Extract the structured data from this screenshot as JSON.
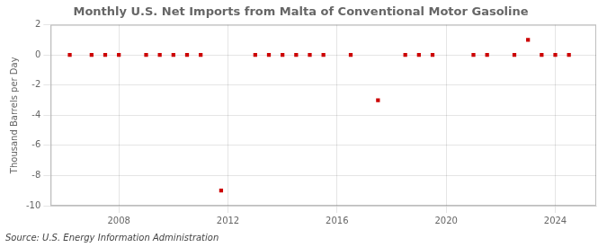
{
  "chart_data": {
    "type": "scatter",
    "title": "Monthly U.S. Net Imports from Malta of Conventional Motor Gasoline",
    "ylabel": "Thousand Barrels per Day",
    "annotations": [
      "Source: U.S. Energy Information Administration"
    ],
    "x": [
      2006.2,
      2007.0,
      2007.5,
      2008.0,
      2009.0,
      2009.5,
      2010.0,
      2010.5,
      2011.0,
      2011.75,
      2013.0,
      2013.5,
      2014.0,
      2014.5,
      2015.0,
      2015.5,
      2016.5,
      2017.5,
      2018.5,
      2019.0,
      2019.5,
      2021.0,
      2021.5,
      2022.5,
      2023.0,
      2023.5,
      2024.0,
      2024.5
    ],
    "values": [
      0,
      0,
      0,
      0,
      0,
      0,
      0,
      0,
      0,
      -9,
      0,
      0,
      0,
      0,
      0,
      0,
      0,
      -3,
      0,
      0,
      0,
      0,
      0,
      0,
      1,
      0,
      0,
      0
    ],
    "color": "#cc0000",
    "marker": "square",
    "xlim": [
      2005.5,
      2025.5
    ],
    "xticks": [
      2008,
      2012,
      2016,
      2020,
      2024
    ],
    "ylim": [
      -10,
      2
    ],
    "yticks": [
      -10,
      -8,
      -6,
      -4,
      -2,
      0,
      2
    ],
    "grid": true
  }
}
